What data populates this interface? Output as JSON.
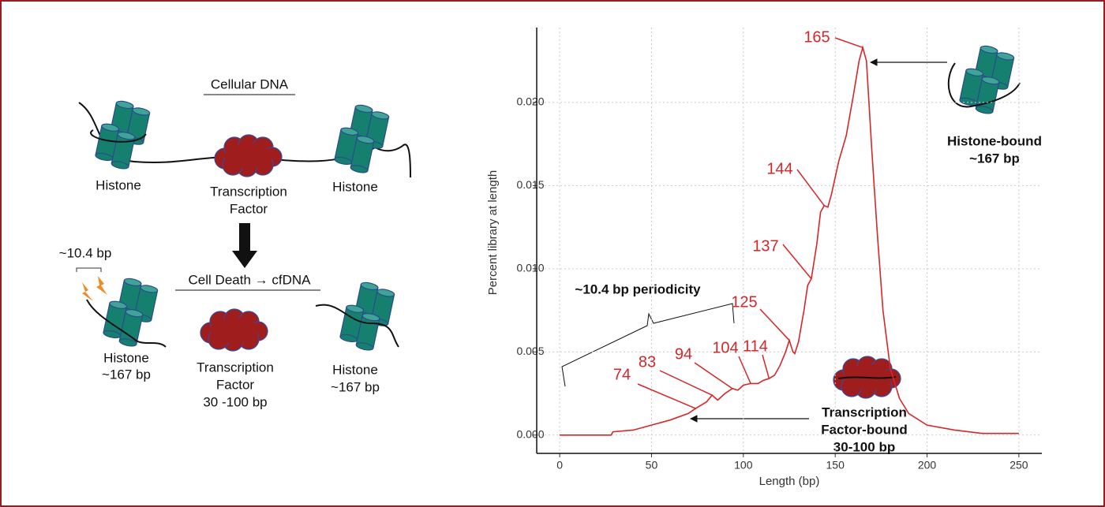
{
  "diagram": {
    "top_title": "Cellular DNA",
    "top_histone_left": "Histone",
    "top_tf": [
      "Transcription",
      "Factor"
    ],
    "top_histone_right": "Histone",
    "spacing": "~10.4 bp",
    "bottom_title": "Cell Death → cfDNA",
    "bottom_histone_left": [
      "Histone",
      "~167 bp"
    ],
    "bottom_tf": [
      "Transcription",
      "Factor",
      "30 -100 bp"
    ],
    "bottom_histone_right": [
      "Histone",
      "~167 bp"
    ]
  },
  "chart_data": {
    "type": "line",
    "x_label": "Length (bp)",
    "y_label": "Percent library at length",
    "x": [
      0,
      28,
      29,
      40,
      50,
      60,
      70,
      74,
      80,
      83,
      86,
      90,
      94,
      97,
      100,
      104,
      108,
      111,
      114,
      117,
      120,
      123,
      125,
      127,
      128,
      130,
      133,
      135,
      137,
      140,
      142,
      144,
      146,
      148,
      152,
      156,
      160,
      163,
      165,
      167,
      170,
      173,
      176,
      180,
      185,
      190,
      200,
      215,
      230,
      250
    ],
    "series": [
      {
        "color": "#d62728",
        "values": [
          0,
          0,
          0.0002,
          0.0003,
          0.0006,
          0.0009,
          0.0013,
          0.0016,
          0.002,
          0.0024,
          0.0021,
          0.0025,
          0.0028,
          0.0027,
          0.003,
          0.0031,
          0.0031,
          0.0033,
          0.0034,
          0.0036,
          0.0042,
          0.005,
          0.0057,
          0.005,
          0.0049,
          0.0056,
          0.0075,
          0.009,
          0.0094,
          0.0115,
          0.0134,
          0.0138,
          0.0137,
          0.0145,
          0.0165,
          0.018,
          0.0205,
          0.0225,
          0.0233,
          0.0225,
          0.017,
          0.012,
          0.0075,
          0.004,
          0.0022,
          0.0013,
          0.0006,
          0.0003,
          0.0001,
          0.0001
        ]
      }
    ],
    "xlim": [
      -12.5,
      262.5
    ],
    "ylim": [
      -0.0011,
      0.0245
    ],
    "xticks": [
      0,
      50,
      100,
      150,
      200,
      250
    ],
    "yticks": [
      {
        "value": 0,
        "label": "0.000"
      },
      {
        "value": 0.005,
        "label": "0.005"
      },
      {
        "value": 0.01,
        "label": "0.010"
      },
      {
        "value": 0.015,
        "label": "0.015"
      },
      {
        "value": 0.02,
        "label": "0.020"
      }
    ],
    "grid": true,
    "peak_labels": [
      74,
      83,
      94,
      104,
      114,
      125,
      137,
      144,
      165
    ],
    "annotations": {
      "periodicity": "~10.4 bp periodicity",
      "histone_bound": [
        "Histone-bound",
        "~167 bp"
      ],
      "tf_bound": [
        "Transcription",
        "Factor-bound",
        "30-100 bp"
      ]
    }
  }
}
